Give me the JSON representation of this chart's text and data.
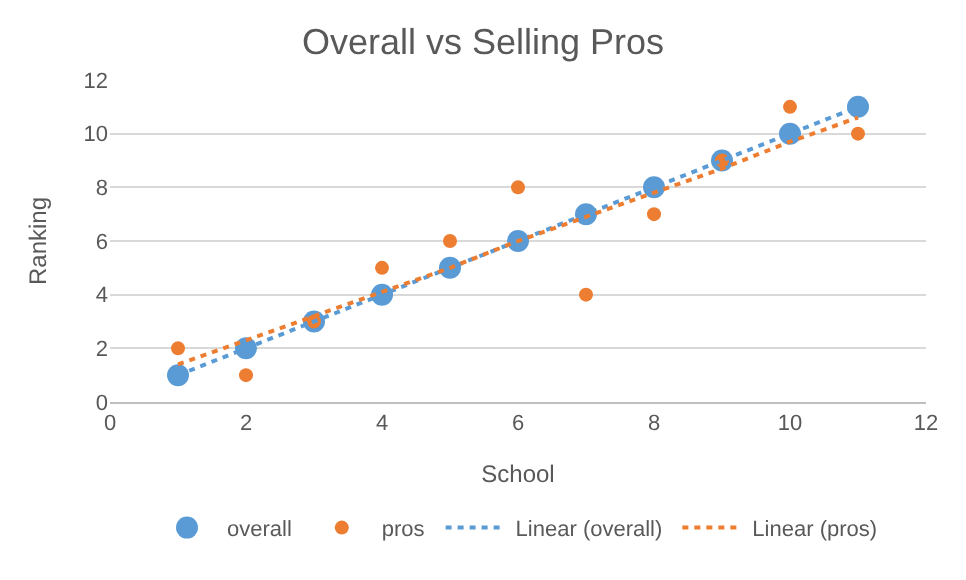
{
  "chart_data": {
    "type": "scatter",
    "title": "Overall vs Selling Pros",
    "xlabel": "School",
    "ylabel": "Ranking",
    "x": [
      1,
      2,
      3,
      4,
      5,
      6,
      7,
      8,
      9,
      10,
      11
    ],
    "series": [
      {
        "name": "overall",
        "color": "#5b9bd5",
        "values": [
          1,
          2,
          3,
          4,
          5,
          6,
          7,
          8,
          9,
          10,
          11
        ],
        "marker": "circle"
      },
      {
        "name": "pros",
        "color": "#ed7d31",
        "values": [
          2,
          1,
          3,
          5,
          6,
          8,
          4,
          7,
          9,
          11,
          10
        ],
        "marker": "circle"
      },
      {
        "name": "Linear (overall)",
        "type": "line",
        "color": "#5b9bd5",
        "values": [
          1,
          2,
          3,
          4,
          5,
          6,
          7,
          8,
          9,
          10,
          11
        ],
        "line_style": "dotted",
        "marker": "none"
      },
      {
        "name": "Linear (pros)",
        "type": "line",
        "color": "#ed7d31",
        "values": [
          1.4,
          2.3,
          3.2,
          4.1,
          5.0,
          6.0,
          6.9,
          7.8,
          8.7,
          9.7,
          10.6
        ],
        "line_style": "dotted",
        "marker": "none"
      }
    ],
    "xlim": [
      0,
      12
    ],
    "xticks": [
      0,
      2,
      4,
      6,
      8,
      10,
      12
    ],
    "ylim": [
      0,
      12
    ],
    "yticks": [
      0,
      2,
      4,
      6,
      8,
      10,
      12
    ],
    "grid": "y",
    "legend": "bottom"
  }
}
